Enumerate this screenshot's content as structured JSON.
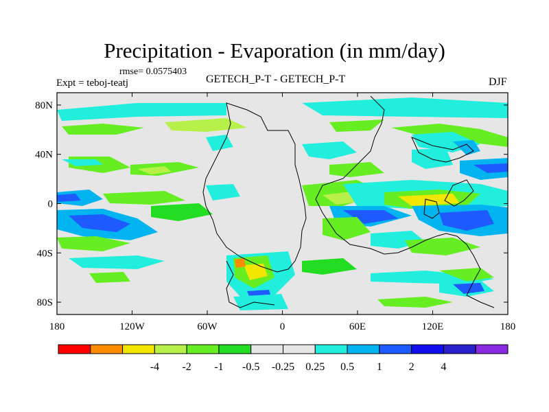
{
  "title": "Precipitation - Evaporation (in mm/day)",
  "rmse_text": "rmse= 0.0575403",
  "expt_text": "Expt = teboj-teatj",
  "center_label": "GETECH_P-T - GETECH_P-T",
  "season": "DJF",
  "map": {
    "lon_range": [
      -180,
      180
    ],
    "lat_range": [
      -90,
      90
    ],
    "x_ticks": [
      {
        "value": -180,
        "label": "180"
      },
      {
        "value": -120,
        "label": "120W"
      },
      {
        "value": -60,
        "label": "60W"
      },
      {
        "value": 0,
        "label": "0"
      },
      {
        "value": 60,
        "label": "60E"
      },
      {
        "value": 120,
        "label": "120E"
      },
      {
        "value": 180,
        "label": "180"
      }
    ],
    "y_ticks": [
      {
        "value": 80,
        "label": "80N"
      },
      {
        "value": 40,
        "label": "40N"
      },
      {
        "value": 0,
        "label": "0"
      },
      {
        "value": -40,
        "label": "40S"
      },
      {
        "value": -80,
        "label": "80S"
      }
    ],
    "background_color": "#e6e6e6"
  },
  "colorbar": {
    "colors": [
      "#ff0000",
      "#ff8c00",
      "#f0e600",
      "#b8f04a",
      "#66ee22",
      "#22dd22",
      "#e6e6e6",
      "#e6e6e6",
      "#22eedd",
      "#00b4f0",
      "#1e5aff",
      "#1010ee",
      "#2a20cc",
      "#8a2be2"
    ],
    "labels": [
      "-4",
      "-2",
      "-1",
      "-0.5",
      "-0.25",
      "0.25",
      "0.5",
      "1",
      "2",
      "4"
    ]
  }
}
